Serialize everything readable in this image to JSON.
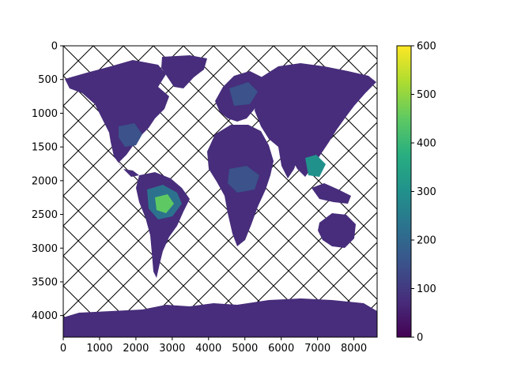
{
  "chart_data": {
    "type": "heatmap",
    "title": "",
    "xlabel": "",
    "ylabel": "",
    "x_axis": {
      "range": [
        0,
        8640
      ],
      "ticks": [
        0,
        1000,
        2000,
        3000,
        4000,
        5000,
        6000,
        7000,
        8000
      ],
      "tick_labels": [
        "0",
        "1000",
        "2000",
        "3000",
        "4000",
        "5000",
        "6000",
        "7000",
        "8000"
      ]
    },
    "y_axis": {
      "range": [
        0,
        4320
      ],
      "inverted": true,
      "ticks": [
        0,
        500,
        1000,
        1500,
        2000,
        2500,
        3000,
        3500,
        4000
      ],
      "tick_labels": [
        "0",
        "500",
        "1000",
        "1500",
        "2000",
        "2500",
        "3000",
        "3500",
        "4000"
      ]
    },
    "colorbar": {
      "colormap": "viridis",
      "range": [
        0,
        600
      ],
      "ticks": [
        0,
        100,
        200,
        300,
        400,
        500,
        600
      ],
      "tick_labels": [
        "0",
        "100",
        "200",
        "300",
        "400",
        "500",
        "600"
      ]
    },
    "no_data_pattern": "cross-hatch",
    "grid": false,
    "legend": "none"
  },
  "colors": {
    "low": "#440154",
    "land_base": "#472d7b",
    "mid": "#3b528b",
    "teal": "#21918c",
    "green": "#5ec962",
    "high": "#fde725",
    "hatch": "#000000",
    "axis": "#000000"
  }
}
